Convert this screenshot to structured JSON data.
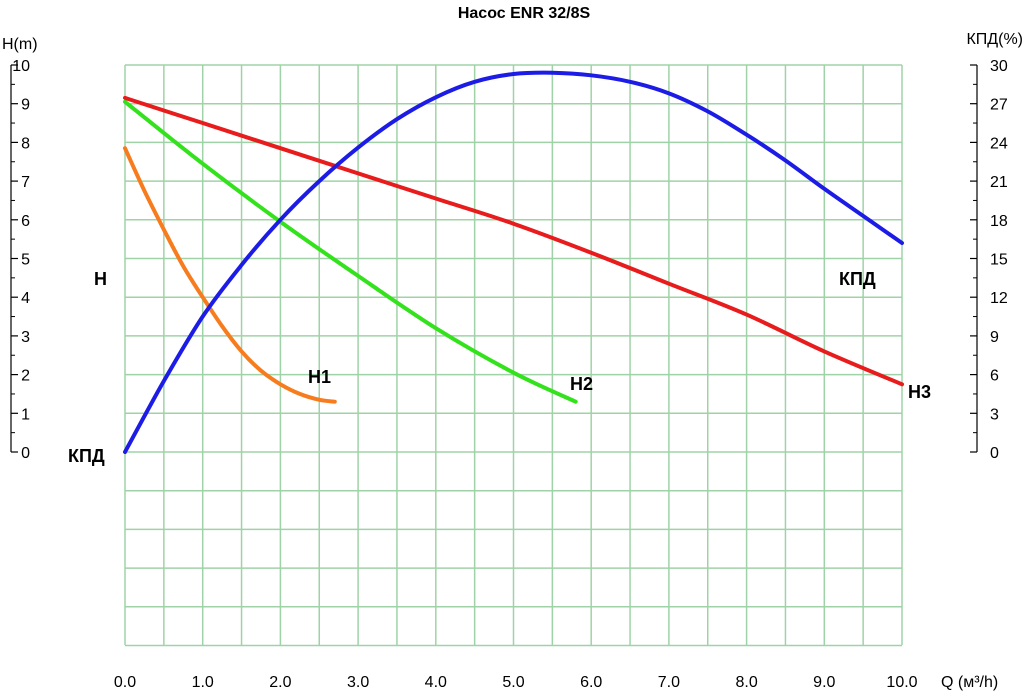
{
  "chart_data": {
    "type": "line",
    "title": "Насос ENR 32/8S",
    "xlabel": "Q (м³/h)",
    "ylabel_left": "H(m)",
    "ylabel_right": "КПД(%)",
    "x_ticks": [
      "0.0",
      "1.0",
      "2.0",
      "3.0",
      "4.0",
      "5.0",
      "6.0",
      "7.0",
      "8.0",
      "9.0",
      "10.0"
    ],
    "y_left_ticks": [
      "0",
      "1",
      "2",
      "3",
      "4",
      "5",
      "6",
      "7",
      "8",
      "9",
      "10"
    ],
    "y_right_ticks": [
      "0",
      "3",
      "6",
      "9",
      "12",
      "15",
      "18",
      "21",
      "24",
      "27",
      "30"
    ],
    "xlim": [
      0,
      10
    ],
    "ylim_left": [
      -5,
      10
    ],
    "ylim_right": [
      0,
      30
    ],
    "grid": true,
    "grid_color": "#9fd3a7",
    "axis_labels_in_plot": {
      "head": "H",
      "efficiency_left": "КПД"
    },
    "series": [
      {
        "name": "H1",
        "axis": "left",
        "color": "#f77c1e",
        "x": [
          0.0,
          0.25,
          0.5,
          0.75,
          1.0,
          1.25,
          1.5,
          1.75,
          2.0,
          2.25,
          2.5,
          2.7
        ],
        "y": [
          7.85,
          6.75,
          5.75,
          4.8,
          4.0,
          3.25,
          2.6,
          2.1,
          1.75,
          1.5,
          1.35,
          1.3
        ]
      },
      {
        "name": "H2",
        "axis": "left",
        "color": "#33e21c",
        "x": [
          0.0,
          1.0,
          2.0,
          3.0,
          4.0,
          5.0,
          5.8
        ],
        "y": [
          9.05,
          7.45,
          5.95,
          4.55,
          3.2,
          2.05,
          1.3
        ]
      },
      {
        "name": "H3",
        "axis": "left",
        "color": "#e81c1c",
        "x": [
          0.0,
          1.0,
          2.0,
          3.0,
          4.0,
          5.0,
          6.0,
          7.0,
          8.0,
          9.0,
          10.0
        ],
        "y": [
          9.15,
          8.5,
          7.85,
          7.2,
          6.55,
          5.9,
          5.15,
          4.35,
          3.55,
          2.6,
          1.75
        ]
      },
      {
        "name": "КПД",
        "axis": "right",
        "color": "#1c1ce6",
        "x": [
          0.0,
          0.5,
          1.0,
          1.5,
          2.0,
          2.5,
          3.0,
          3.5,
          4.0,
          4.5,
          5.0,
          5.5,
          6.0,
          6.5,
          7.0,
          7.5,
          8.0,
          8.5,
          9.0,
          9.5,
          10.0
        ],
        "y": [
          0.0,
          5.5,
          10.5,
          14.5,
          18.0,
          21.0,
          23.6,
          25.8,
          27.5,
          28.7,
          29.3,
          29.4,
          29.2,
          28.7,
          27.8,
          26.4,
          24.6,
          22.6,
          20.4,
          18.3,
          16.2
        ]
      }
    ]
  }
}
